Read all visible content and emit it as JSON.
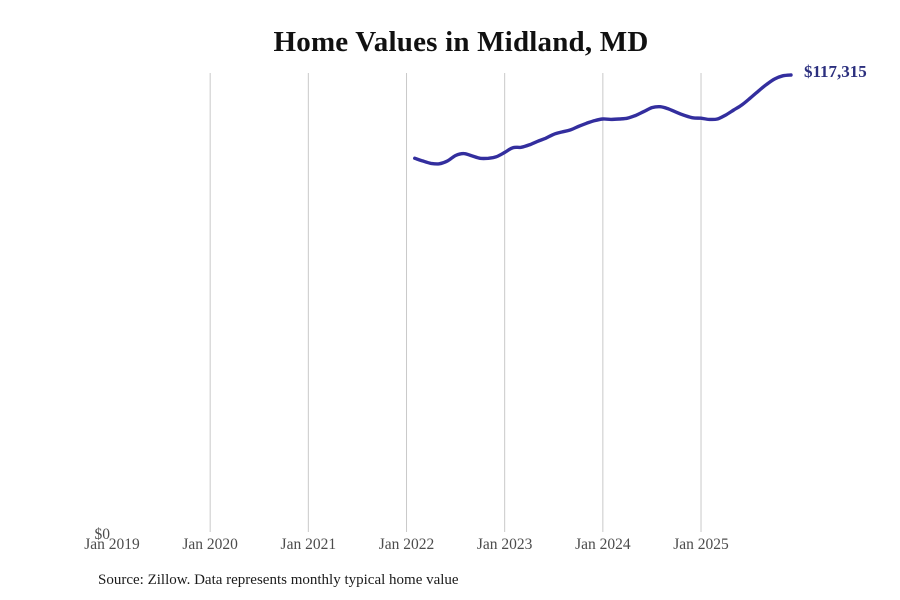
{
  "chart_data": {
    "type": "line",
    "title": "Home Values in Midland, MD",
    "source_note": "Source: Zillow. Data represents monthly typical home value",
    "end_label": "$117,315",
    "latest_value": 117315,
    "y_zero_label": "$0",
    "x_tick_labels": [
      "Jan 2019",
      "Jan 2020",
      "Jan 2021",
      "Jan 2022",
      "Jan 2023",
      "Jan 2024",
      "Jan 2025"
    ],
    "x_gridline_years": [
      2020,
      2021,
      2022,
      2023,
      2024,
      2025
    ],
    "xlim_months": [
      "2019-01",
      "2026-01"
    ],
    "ylim": [
      0,
      117315
    ],
    "grid": "vertical-only",
    "legend": "none",
    "series": [
      {
        "name": "Monthly typical home value",
        "unit": "USD",
        "start_month": "2022-02",
        "values": [
          96100,
          95400,
          94800,
          94700,
          95400,
          96800,
          97300,
          96700,
          96100,
          96100,
          96500,
          97600,
          98800,
          98900,
          99500,
          100400,
          101200,
          102200,
          102800,
          103300,
          104200,
          105000,
          105700,
          106100,
          106000,
          106100,
          106300,
          107000,
          108000,
          109000,
          109250,
          108700,
          107800,
          107000,
          106400,
          106300,
          106000,
          106100,
          107100,
          108400,
          109700,
          111400,
          113200,
          114900,
          116300,
          117100,
          117315
        ]
      }
    ],
    "colors": {
      "line": "#332e9e",
      "end_label": "#2b2f7e",
      "grid": "#c9c9c9",
      "tick_label": "#4c4c4c",
      "title": "#111111",
      "source": "#1b1b1b"
    }
  }
}
